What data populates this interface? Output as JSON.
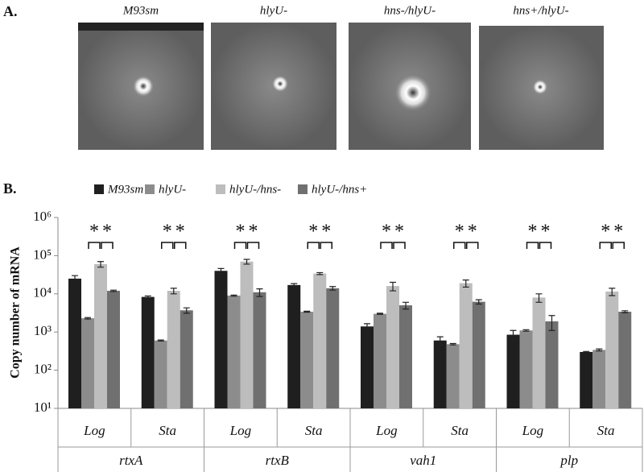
{
  "panel_a": {
    "label": "A.",
    "images": [
      "M93sm",
      "hlyU-",
      "hns-/hlyU-",
      "hns+/hlyU-"
    ]
  },
  "chart_data": {
    "type": "bar",
    "panel_label": "B.",
    "ylabel": "Copy number of mRNA",
    "log_scale": true,
    "ylim": [
      10,
      1000000
    ],
    "yticks": [
      {
        "value": 10,
        "label": "10¹"
      },
      {
        "value": 100,
        "label": "10²"
      },
      {
        "value": 1000,
        "label": "10³"
      },
      {
        "value": 10000,
        "label": "10⁴"
      },
      {
        "value": 100000,
        "label": "10⁵"
      },
      {
        "value": 1000000,
        "label": "10⁶"
      }
    ],
    "categories": [
      "Log",
      "Sta",
      "Log",
      "Sta",
      "Log",
      "Sta",
      "Log",
      "Sta"
    ],
    "groups": [
      "rtxA",
      "rtxB",
      "vah1",
      "plp"
    ],
    "series": [
      {
        "name": "M93sm",
        "color": "#1f1f1f",
        "values": [
          25000,
          8300,
          40000,
          17000,
          1400,
          600,
          850,
          300
        ],
        "errors": [
          5000,
          500,
          6000,
          1500,
          250,
          150,
          250,
          10
        ]
      },
      {
        "name": "hlyU-",
        "color": "#8c8c8c",
        "values": [
          2300,
          600,
          9000,
          3400,
          3000,
          480,
          1100,
          340
        ],
        "errors": [
          100,
          20,
          300,
          100,
          100,
          20,
          50,
          20
        ]
      },
      {
        "name": "hlyU-/hns-",
        "color": "#bdbdbd",
        "values": [
          60000,
          12000,
          70000,
          34000,
          16000,
          19000,
          8000,
          11500
        ],
        "errors": [
          10000,
          2000,
          10000,
          2000,
          4000,
          4000,
          2000,
          2500
        ]
      },
      {
        "name": "hlyU-/hns+",
        "color": "#707070",
        "values": [
          12000,
          3700,
          11000,
          14000,
          5000,
          6200,
          1900,
          3400
        ],
        "errors": [
          500,
          600,
          2500,
          1500,
          1000,
          800,
          800,
          200
        ]
      }
    ],
    "annotations": [
      "*",
      "*",
      "*",
      "*",
      "*",
      "*",
      "*",
      "*",
      "*",
      "*",
      "*",
      "*",
      "*",
      "*",
      "*",
      "*"
    ]
  }
}
